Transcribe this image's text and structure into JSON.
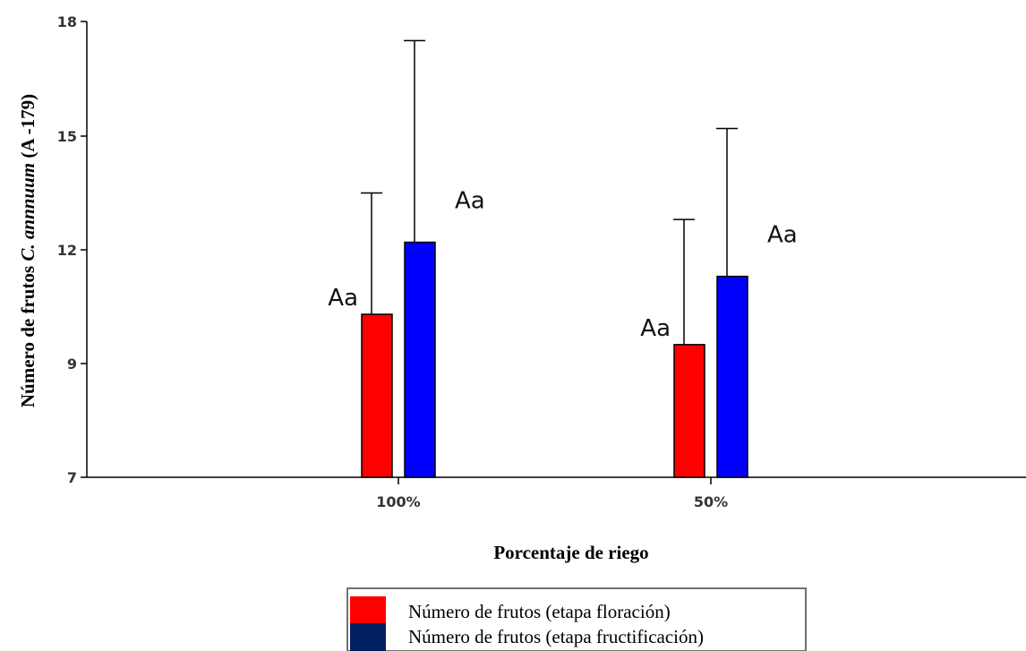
{
  "chart_data": {
    "type": "bar",
    "categories": [
      "100%",
      "50%"
    ],
    "series": [
      {
        "name": "Número de frutos (etapa floración)",
        "color": "#ff0000",
        "values": [
          10.3,
          9.5
        ],
        "error": [
          3.2,
          3.3
        ],
        "labels": [
          "Aa",
          "Aa"
        ]
      },
      {
        "name": "Número de frutos (etapa fructificación)",
        "color": "#0000ff",
        "values": [
          12.2,
          11.3
        ],
        "error": [
          5.3,
          3.9
        ],
        "labels": [
          "Aa",
          "Aa"
        ]
      }
    ],
    "yticks": [
      "7",
      "9",
      "12",
      "15",
      "18"
    ],
    "ylim": [
      6,
      18
    ],
    "xlabel": "Porcentaje de riego",
    "ylabel_parts": [
      "Número de frutos ",
      "C. annnuum",
      " (A -179)"
    ],
    "legend_colors": [
      "#ff0000",
      "#002060"
    ],
    "legend_position": "bottom-center",
    "grid": false
  }
}
